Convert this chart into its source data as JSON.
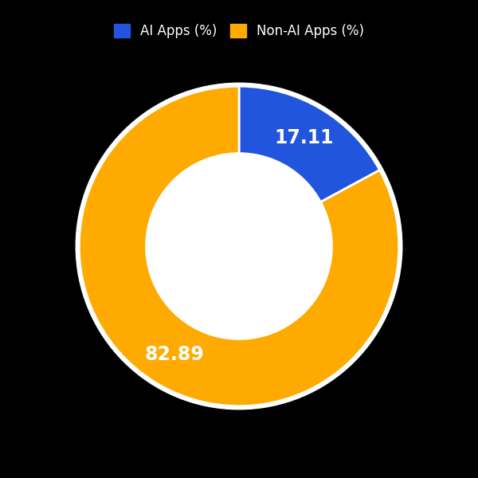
{
  "labels": [
    "AI Apps (%)",
    "Non-AI Apps (%)"
  ],
  "values": [
    17.11,
    82.89
  ],
  "colors": [
    "#2255dd",
    "#ffaa00"
  ],
  "text_labels": [
    "17.11",
    "82.89"
  ],
  "text_colors": [
    "white",
    "white"
  ],
  "background_color": "#000000",
  "chart_bg_color": "#ffffff",
  "donut_width": 0.42,
  "label_fontsize": 17,
  "legend_fontsize": 12,
  "startangle": 90,
  "fig_width": 6.0,
  "fig_height": 6.0,
  "dpi": 100
}
